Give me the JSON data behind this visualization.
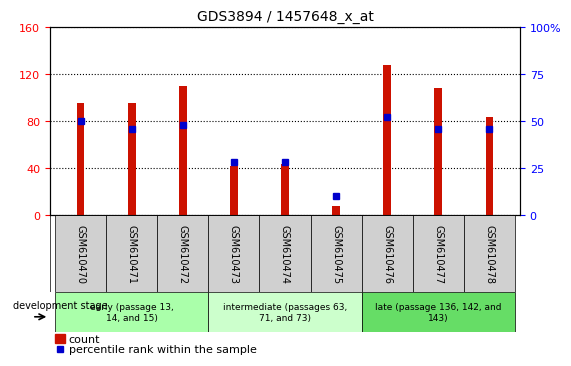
{
  "title": "GDS3894 / 1457648_x_at",
  "samples": [
    "GSM610470",
    "GSM610471",
    "GSM610472",
    "GSM610473",
    "GSM610474",
    "GSM610475",
    "GSM610476",
    "GSM610477",
    "GSM610478"
  ],
  "counts": [
    95,
    95,
    110,
    42,
    43,
    8,
    128,
    108,
    83
  ],
  "percentile_ranks": [
    50,
    46,
    48,
    28,
    28,
    10,
    52,
    46,
    46
  ],
  "groups": [
    {
      "label": "early (passage 13,\n14, and 15)",
      "indices": [
        0,
        1,
        2
      ],
      "color": "#aaffaa"
    },
    {
      "label": "intermediate (passages 63,\n71, and 73)",
      "indices": [
        3,
        4,
        5
      ],
      "color": "#ccffcc"
    },
    {
      "label": "late (passage 136, 142, and\n143)",
      "indices": [
        6,
        7,
        8
      ],
      "color": "#66dd66"
    }
  ],
  "ylim_left": [
    0,
    160
  ],
  "ylim_right": [
    0,
    100
  ],
  "yticks_left": [
    0,
    40,
    80,
    120,
    160
  ],
  "yticks_right": [
    0,
    25,
    50,
    75,
    100
  ],
  "bar_color": "#cc1100",
  "dot_color": "#0000cc",
  "bar_width": 0.15,
  "tick_label_bg": "#d0d0d0",
  "dev_stage_label": "development stage",
  "legend_count_label": "count",
  "legend_pct_label": "percentile rank within the sample"
}
